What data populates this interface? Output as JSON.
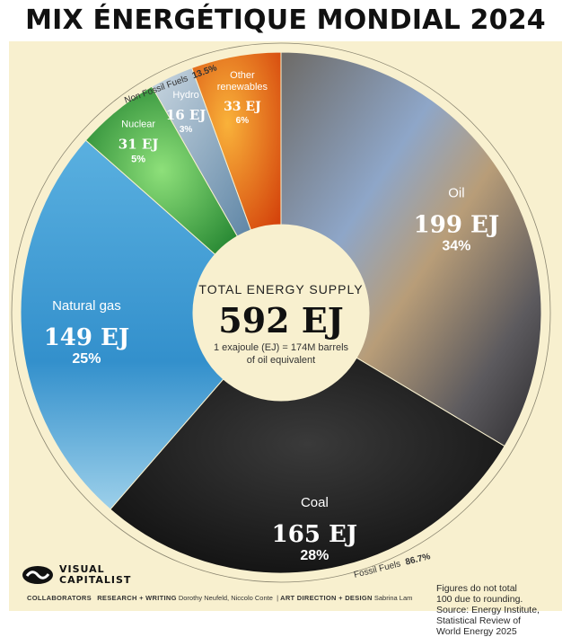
{
  "title": "MIX ÉNERGÉTIQUE MONDIAL 2024",
  "center": {
    "heading": "TOTAL ENERGY SUPPLY",
    "total": "592 EJ",
    "note_line1": "1 exajoule (EJ) = 174M barrels",
    "note_line2": "of oil equivalent"
  },
  "groups": {
    "non_fossil_label": "Non Fossil Fuels",
    "non_fossil_value": "13.5%",
    "fossil_label": "Fossil Fuels",
    "fossil_value": "86.7%"
  },
  "chart_data": {
    "type": "pie",
    "title": "MIX ÉNERGÉTIQUE MONDIAL 2024",
    "unit": "EJ",
    "total": 592,
    "slices": [
      {
        "name": "Oil",
        "value": 199,
        "value_label": "199 EJ",
        "pct_label": "34%",
        "color": "#8a7c63"
      },
      {
        "name": "Coal",
        "value": 165,
        "value_label": "165 EJ",
        "pct_label": "28%",
        "color": "#1b1b1b"
      },
      {
        "name": "Natural gas",
        "value": 149,
        "value_label": "149 EJ",
        "pct_label": "25%",
        "color": "#3e9cd3"
      },
      {
        "name": "Nuclear",
        "value": 31,
        "value_label": "31 EJ",
        "pct_label": "5%",
        "color": "#2e9b3c"
      },
      {
        "name": "Hydro",
        "value": 16,
        "value_label": "16 EJ",
        "pct_label": "3%",
        "color": "#7fa2bd"
      },
      {
        "name": "Other renewables",
        "value": 33,
        "value_label": "33 EJ",
        "pct_label": "6%",
        "color": "#e96d12"
      }
    ]
  },
  "footnote": {
    "line1": "Figures do not total",
    "line2": "100 due to rounding.",
    "line3": "Source: Energy Institute,",
    "line4": "Statistical Review of",
    "line5": "World Energy 2025"
  },
  "logo": {
    "line1": "VISUAL",
    "line2": "CAPITALIST"
  },
  "credits": {
    "collaborators": "COLLABORATORS",
    "research_label": "RESEARCH + WRITING",
    "research_names": "Dorothy Neufeld, Niccolo Conte",
    "art_label": "ART DIRECTION + DESIGN",
    "art_names": "Sabrina Lam"
  }
}
